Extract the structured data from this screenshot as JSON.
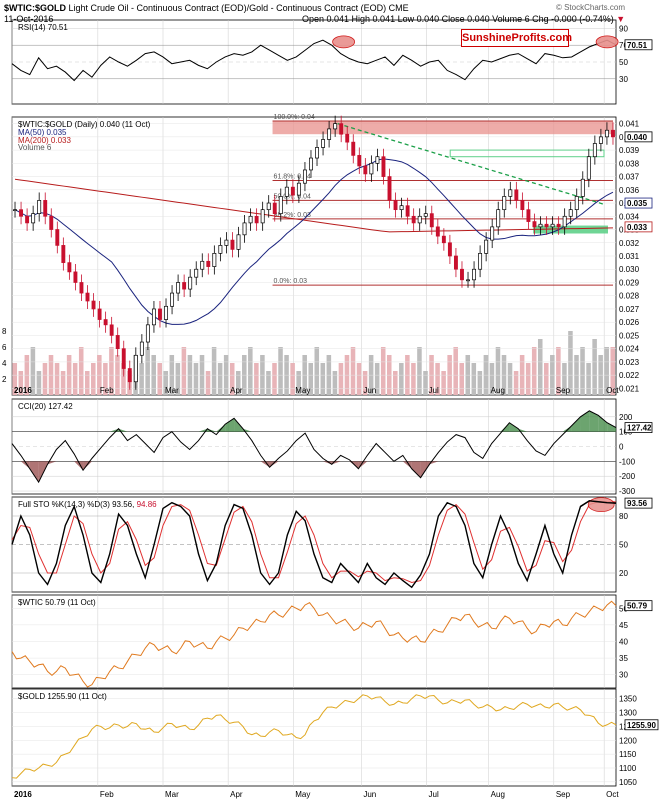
{
  "header": {
    "symbol": "$WTIC:$GOLD",
    "description": "Light Crude Oil - Continuous Contract (EOD)/Gold - Continuous Contract (EOD)",
    "exchange": "CME",
    "date": "11-Oct-2016",
    "quote": "Open 0.041  High 0.041  Low 0.040  Close 0.040  Volume 6  Chg -0.000 (-0.74%)",
    "chg_arrow": "▼",
    "source": "© StockCharts.com"
  },
  "brand": {
    "text": "SunshineProfits.com"
  },
  "colors": {
    "up": "#000000",
    "down": "#c8102e",
    "ma50": "#1a237e",
    "ma200": "#b71c1c",
    "wtic": "#e07a1f",
    "gold": "#e0a820",
    "fib": "#b03030",
    "zone": "#e8908c",
    "green_zone": "#5fd08a",
    "volume": "#e8b4b8",
    "volume_up": "#bdbdbd"
  },
  "chart_data": [
    {
      "type": "line",
      "id": "rsi",
      "title": "RSI(14) 70.51",
      "last_label": "70.51",
      "ylim": [
        0,
        100
      ],
      "yticks": [
        30,
        50,
        70,
        90
      ],
      "x": [
        0,
        3,
        6,
        9,
        12,
        15,
        18,
        21,
        24,
        27,
        30,
        33,
        36,
        39,
        42,
        45,
        48,
        51,
        54,
        57,
        60,
        63,
        66,
        69,
        72,
        75,
        78,
        81,
        84,
        87,
        90,
        93,
        96,
        99,
        102,
        105,
        108,
        111,
        114,
        117,
        120,
        123,
        126,
        129,
        132,
        135,
        138,
        141,
        144,
        147,
        150,
        153,
        156,
        159,
        162,
        165,
        168,
        171,
        174,
        177,
        180,
        183,
        186,
        189,
        192,
        195,
        198,
        201,
        204
      ],
      "values": [
        48,
        40,
        35,
        55,
        42,
        45,
        38,
        28,
        40,
        32,
        46,
        56,
        50,
        45,
        52,
        60,
        62,
        56,
        48,
        50,
        52,
        46,
        42,
        50,
        56,
        60,
        58,
        62,
        70,
        64,
        58,
        52,
        56,
        64,
        72,
        76,
        70,
        60,
        54,
        50,
        48,
        52,
        56,
        46,
        58,
        52,
        45,
        50,
        52,
        40,
        35,
        29,
        42,
        52,
        50,
        54,
        58,
        60,
        54,
        48,
        60,
        58,
        55,
        56,
        62,
        68,
        72,
        76,
        70.5
      ]
    },
    {
      "type": "candlestick",
      "id": "price",
      "title": "$WTIC:$GOLD (Daily) 0.040 (11 Oct)",
      "legend": [
        "MA(50) 0.035",
        "MA(200) 0.033",
        "Volume 6"
      ],
      "ylim": [
        0.0205,
        0.0415
      ],
      "yticks": [
        0.021,
        0.022,
        0.023,
        0.024,
        0.025,
        0.026,
        0.027,
        0.028,
        0.029,
        0.03,
        0.031,
        0.032,
        0.033,
        0.034,
        0.035,
        0.036,
        0.037,
        0.038,
        0.039,
        0.04,
        0.041
      ],
      "ytick_labels": [
        "0.021",
        "0.022",
        "0.023",
        "0.024",
        "0.025",
        "0.026",
        "0.027",
        "0.028",
        "0.029",
        "0.030",
        "0.031",
        "0.032",
        "0.033",
        "0.034",
        "0.035",
        "0.036",
        "0.037",
        "0.038",
        "0.039",
        "0.040",
        "0.041"
      ],
      "last_labels": [
        "0.040",
        "0.035",
        "0.033"
      ],
      "fib_levels": [
        {
          "label": "100.0%: 0.04",
          "value": 0.0412
        },
        {
          "label": "61.8%: 0.04",
          "value": 0.0367
        },
        {
          "label": "50.0%: 0.04",
          "value": 0.0352
        },
        {
          "label": "38.2%: 0.03",
          "value": 0.0338
        },
        {
          "label": "0.0%: 0.03",
          "value": 0.0288
        }
      ],
      "closes": [
        0.0345,
        0.034,
        0.0335,
        0.0342,
        0.0352,
        0.034,
        0.033,
        0.0318,
        0.0305,
        0.0298,
        0.029,
        0.0282,
        0.0276,
        0.027,
        0.0262,
        0.0258,
        0.025,
        0.024,
        0.0225,
        0.0215,
        0.0235,
        0.0245,
        0.0258,
        0.027,
        0.0262,
        0.0272,
        0.0282,
        0.029,
        0.0285,
        0.0294,
        0.03,
        0.0306,
        0.0302,
        0.0312,
        0.0318,
        0.0322,
        0.0315,
        0.0326,
        0.0335,
        0.034,
        0.0335,
        0.0345,
        0.035,
        0.0342,
        0.0355,
        0.0362,
        0.0356,
        0.0365,
        0.0375,
        0.0384,
        0.0392,
        0.0398,
        0.0406,
        0.041,
        0.0402,
        0.0396,
        0.0386,
        0.0378,
        0.0372,
        0.038,
        0.0385,
        0.037,
        0.0352,
        0.0345,
        0.0348,
        0.034,
        0.0335,
        0.034,
        0.0342,
        0.0332,
        0.0325,
        0.032,
        0.031,
        0.03,
        0.0292,
        0.0292,
        0.03,
        0.0312,
        0.0322,
        0.0332,
        0.0345,
        0.0355,
        0.036,
        0.0352,
        0.0345,
        0.0336,
        0.0332,
        0.0334,
        0.0332,
        0.0334,
        0.0332,
        0.034,
        0.0345,
        0.0355,
        0.0368,
        0.0385,
        0.0395,
        0.04,
        0.0405,
        0.04
      ],
      "volume_ylim": [
        0,
        10
      ],
      "volume_ticks": [
        2,
        4,
        6,
        8
      ],
      "volume": [
        4,
        3,
        5,
        6,
        3,
        4,
        5,
        4,
        3,
        5,
        4,
        6,
        3,
        4,
        5,
        4,
        6,
        5,
        4,
        3,
        5,
        4,
        6,
        5,
        4,
        3,
        5,
        4,
        6,
        5,
        4,
        5,
        3,
        6,
        4,
        5,
        4,
        3,
        5,
        6,
        4,
        5,
        3,
        4,
        6,
        5,
        4,
        3,
        5,
        4,
        6,
        4,
        5,
        3,
        4,
        5,
        6,
        4,
        3,
        5,
        4,
        6,
        5,
        3,
        4,
        5,
        4,
        6,
        3,
        5,
        4,
        3,
        5,
        6,
        4,
        5,
        4,
        3,
        5,
        4,
        6,
        5,
        4,
        3,
        5,
        4,
        6,
        7,
        4,
        5,
        6,
        4,
        8,
        5,
        6,
        4,
        7,
        5,
        6,
        6
      ]
    },
    {
      "type": "area",
      "id": "cci",
      "title": "CCI(20) 127.42",
      "last_label": "127.42",
      "ylim": [
        -320,
        320
      ],
      "yticks": [
        -300,
        -200,
        -100,
        0,
        100,
        200
      ],
      "x": [
        0,
        3,
        6,
        9,
        12,
        15,
        18,
        21,
        24,
        27,
        30,
        33,
        36,
        39,
        42,
        45,
        48,
        51,
        54,
        57,
        60,
        63,
        66,
        69,
        72,
        75,
        78,
        81,
        84,
        87,
        90,
        93,
        96,
        99,
        102,
        105,
        108,
        111,
        114,
        117,
        120,
        123,
        126,
        129,
        132,
        135,
        138,
        141,
        144,
        147,
        150,
        153,
        156,
        159,
        162,
        165,
        168,
        171,
        174,
        177,
        180,
        183,
        186,
        189,
        192,
        195,
        198,
        201,
        204
      ],
      "values": [
        20,
        -60,
        -150,
        -240,
        -120,
        -20,
        40,
        -50,
        -160,
        -80,
        -10,
        60,
        120,
        40,
        80,
        20,
        -40,
        60,
        100,
        30,
        -20,
        40,
        120,
        80,
        150,
        190,
        120,
        40,
        -60,
        -140,
        -80,
        -30,
        40,
        90,
        -20,
        -80,
        -120,
        -60,
        -90,
        -150,
        -60,
        20,
        -40,
        -100,
        -60,
        -150,
        -210,
        -120,
        -40,
        30,
        80,
        60,
        -40,
        -80,
        20,
        90,
        160,
        120,
        40,
        -30,
        -60,
        20,
        80,
        140,
        200,
        240,
        210,
        160,
        127.42
      ]
    },
    {
      "type": "line",
      "id": "sto",
      "title": "Full STO %K(14,3) %D(3) 93.56,",
      "title_d": "94.86",
      "last_label": "93.56",
      "ylim": [
        0,
        100
      ],
      "yticks": [
        20,
        50,
        80
      ],
      "x": [
        0,
        3,
        6,
        9,
        12,
        15,
        18,
        21,
        24,
        27,
        30,
        33,
        36,
        39,
        42,
        45,
        48,
        51,
        54,
        57,
        60,
        63,
        66,
        69,
        72,
        75,
        78,
        81,
        84,
        87,
        90,
        93,
        96,
        99,
        102,
        105,
        108,
        111,
        114,
        117,
        120,
        123,
        126,
        129,
        132,
        135,
        138,
        141,
        144,
        147,
        150,
        153,
        156,
        159,
        162,
        165,
        168,
        171,
        174,
        177,
        180,
        183,
        186,
        189,
        192,
        195,
        198,
        201,
        204
      ],
      "k": [
        50,
        80,
        60,
        20,
        8,
        30,
        70,
        90,
        60,
        20,
        10,
        40,
        82,
        70,
        40,
        15,
        50,
        88,
        94,
        90,
        80,
        40,
        12,
        30,
        70,
        92,
        88,
        60,
        20,
        8,
        20,
        60,
        85,
        75,
        40,
        15,
        10,
        30,
        20,
        10,
        30,
        15,
        8,
        20,
        12,
        5,
        18,
        40,
        80,
        94,
        90,
        70,
        30,
        15,
        50,
        80,
        60,
        30,
        12,
        40,
        70,
        40,
        20,
        60,
        90,
        96,
        95,
        94,
        93.56
      ],
      "d": [
        55,
        70,
        68,
        40,
        20,
        20,
        50,
        80,
        72,
        40,
        20,
        30,
        66,
        74,
        55,
        28,
        36,
        70,
        90,
        92,
        86,
        60,
        30,
        28,
        56,
        84,
        90,
        74,
        40,
        15,
        15,
        42,
        72,
        80,
        60,
        30,
        15,
        22,
        22,
        16,
        22,
        20,
        12,
        15,
        14,
        10,
        12,
        28,
        60,
        86,
        92,
        82,
        52,
        24,
        34,
        64,
        68,
        48,
        22,
        28,
        54,
        52,
        32,
        44,
        74,
        92,
        95,
        95,
        94.86
      ]
    },
    {
      "type": "line",
      "id": "wtic",
      "title": "$WTIC 50.79 (11 Oct)",
      "last_label": "50.79",
      "ylim": [
        26,
        54
      ],
      "yticks": [
        30,
        35,
        40,
        45,
        50
      ],
      "x": [
        0,
        3,
        6,
        9,
        12,
        15,
        18,
        21,
        24,
        27,
        30,
        33,
        36,
        39,
        42,
        45,
        48,
        51,
        54,
        57,
        60,
        63,
        66,
        69,
        72,
        75,
        78,
        81,
        84,
        87,
        90,
        93,
        96,
        99,
        102,
        105,
        108,
        111,
        114,
        117,
        120,
        123,
        126,
        129,
        132,
        135,
        138,
        141,
        144,
        147,
        150,
        153,
        156,
        159,
        162,
        165,
        168,
        171,
        174,
        177,
        180,
        183,
        186,
        189,
        192,
        195,
        198,
        201,
        204
      ],
      "values": [
        37,
        35,
        34,
        33,
        31,
        31,
        32,
        30,
        28,
        27,
        29,
        31,
        32,
        34,
        36,
        38,
        39,
        38,
        37,
        38,
        40,
        39,
        38,
        40,
        41,
        42,
        44,
        45,
        46,
        48,
        48,
        49,
        50,
        51,
        50,
        48,
        47,
        46,
        45,
        44,
        45,
        46,
        44,
        42,
        41,
        41,
        40,
        42,
        43,
        45,
        47,
        48,
        46,
        45,
        44,
        46,
        47,
        46,
        44,
        43,
        45,
        46,
        45,
        47,
        48,
        49,
        50,
        51,
        50.79
      ]
    },
    {
      "type": "line",
      "id": "gold",
      "title": "$GOLD 1255.90 (11 Oct)",
      "last_label": "1255.90",
      "ylim": [
        1035,
        1385
      ],
      "yticks": [
        1050,
        1100,
        1150,
        1200,
        1250,
        1300,
        1350
      ],
      "x": [
        0,
        3,
        6,
        9,
        12,
        15,
        18,
        21,
        24,
        27,
        30,
        33,
        36,
        39,
        42,
        45,
        48,
        51,
        54,
        57,
        60,
        63,
        66,
        69,
        72,
        75,
        78,
        81,
        84,
        87,
        90,
        93,
        96,
        99,
        102,
        105,
        108,
        111,
        114,
        117,
        120,
        123,
        126,
        129,
        132,
        135,
        138,
        141,
        144,
        147,
        150,
        153,
        156,
        159,
        162,
        165,
        168,
        171,
        174,
        177,
        180,
        183,
        186,
        189,
        192,
        195,
        198,
        201,
        204
      ],
      "values": [
        1065,
        1080,
        1095,
        1100,
        1110,
        1120,
        1150,
        1180,
        1210,
        1240,
        1250,
        1245,
        1255,
        1250,
        1260,
        1240,
        1230,
        1245,
        1260,
        1250,
        1240,
        1255,
        1280,
        1290,
        1275,
        1265,
        1250,
        1220,
        1215,
        1230,
        1235,
        1220,
        1210,
        1220,
        1270,
        1300,
        1320,
        1330,
        1340,
        1350,
        1360,
        1355,
        1340,
        1330,
        1335,
        1350,
        1360,
        1360,
        1345,
        1335,
        1340,
        1345,
        1330,
        1320,
        1320,
        1310,
        1315,
        1325,
        1330,
        1325,
        1320,
        1330,
        1320,
        1315,
        1310,
        1290,
        1262,
        1256,
        1255.9
      ]
    }
  ],
  "months": [
    "2016",
    "Feb",
    "Mar",
    "Apr",
    "May",
    "Jun",
    "Jul",
    "Aug",
    "Sep",
    "Oct"
  ]
}
